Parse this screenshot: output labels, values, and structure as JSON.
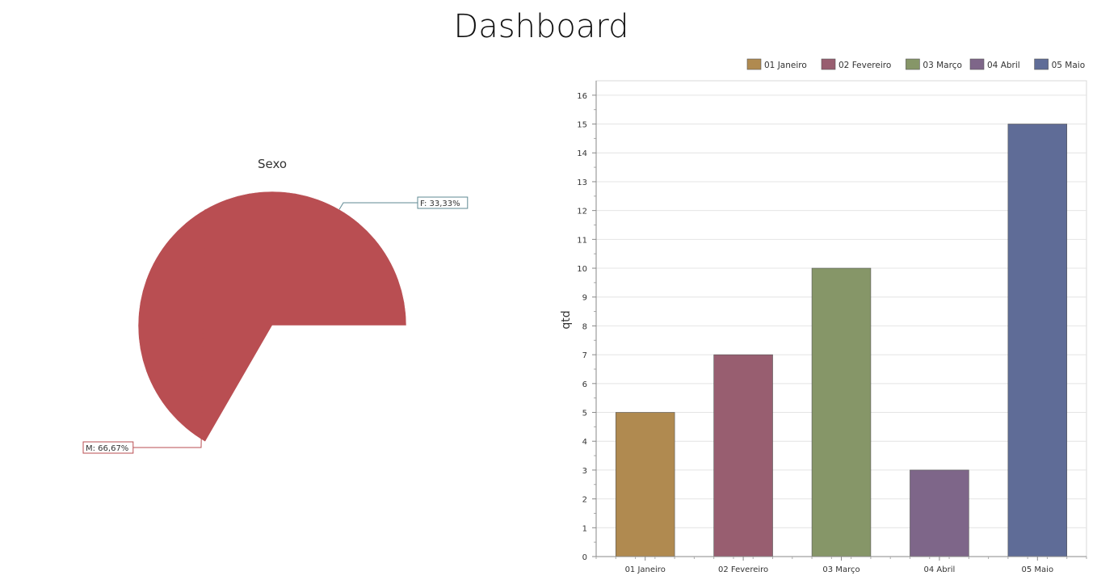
{
  "page": {
    "title": "Dashboard"
  },
  "colors": {
    "pie": [
      "#5f8a93",
      "#b94e52"
    ],
    "bars": [
      "#b08a50",
      "#985e70",
      "#869668",
      "#7e6689",
      "#5f6c97"
    ]
  },
  "chart_data": [
    {
      "type": "pie",
      "title": "Sexo",
      "slices": [
        {
          "label": "F: 33,33%",
          "name": "F",
          "value": 33.33
        },
        {
          "label": "M: 66,67%",
          "name": "M",
          "value": 66.67
        }
      ]
    },
    {
      "type": "bar",
      "categories": [
        "01 Janeiro",
        "02 Fevereiro",
        "03 Março",
        "04 Abril",
        "05 Maio"
      ],
      "values": [
        5,
        7,
        10,
        3,
        15
      ],
      "ylabel": "qtd",
      "ylim": [
        0,
        16.5
      ],
      "yticks": [
        "0",
        "1",
        "2",
        "3",
        "4",
        "5",
        "6",
        "7",
        "8",
        "9",
        "10",
        "11",
        "12",
        "13",
        "14",
        "15",
        "16"
      ],
      "legend": [
        "01 Janeiro",
        "02 Fevereiro",
        "03 Março",
        "04 Abril",
        "05 Maio"
      ],
      "legend_position": "top-right",
      "grid": true
    }
  ]
}
